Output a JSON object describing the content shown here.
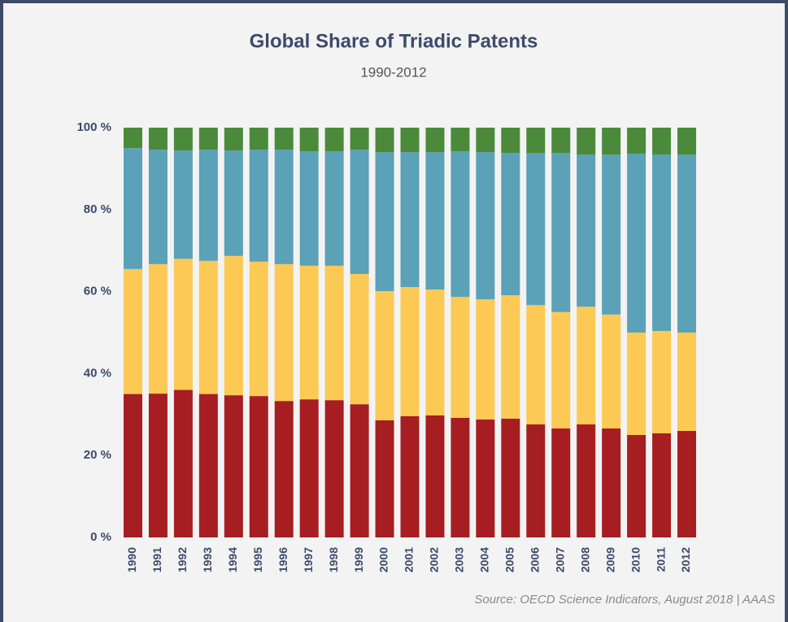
{
  "chart_data": {
    "type": "stacked_bar",
    "title": "Global Share of Triadic Patents",
    "subtitle": "1990-2012",
    "source": "Source: OECD Science Indicators, August 2018 | AAAS",
    "categories": [
      "1990",
      "1991",
      "1992",
      "1993",
      "1994",
      "1995",
      "1996",
      "1997",
      "1998",
      "1999",
      "2000",
      "2001",
      "2002",
      "2003",
      "2004",
      "2005",
      "2006",
      "2007",
      "2008",
      "2009",
      "2010",
      "2011",
      "2012"
    ],
    "series": [
      {
        "color": "#a61e22",
        "values": [
          35,
          35.1,
          36,
          35,
          34.7,
          34.5,
          33.3,
          33.7,
          33.5,
          32.5,
          28.6,
          29.6,
          29.8,
          29.2,
          28.8,
          29,
          27.6,
          26.6,
          27.6,
          26.6,
          25,
          25.4,
          26
        ]
      },
      {
        "color": "#fcc954",
        "values": [
          30.5,
          31.6,
          32,
          32.5,
          34,
          32.8,
          33.4,
          32.6,
          32.8,
          31.8,
          31.5,
          31.5,
          30.7,
          29.5,
          29.3,
          30.1,
          29.1,
          28.4,
          28.7,
          27.8,
          25,
          25,
          24
        ]
      },
      {
        "color": "#5ba1b8",
        "values": [
          29.5,
          27.9,
          26.4,
          27.1,
          25.7,
          27.3,
          27.9,
          27.9,
          27.9,
          30.3,
          33.9,
          32.9,
          33.5,
          35.5,
          35.9,
          34.7,
          37.1,
          38.8,
          37.1,
          39,
          43.6,
          43,
          43.4
        ]
      },
      {
        "color": "#4b8a3b",
        "values": [
          5,
          5.4,
          5.6,
          5.4,
          5.6,
          5.4,
          5.4,
          5.8,
          5.8,
          5.4,
          6,
          6,
          6,
          5.8,
          6,
          6.2,
          6.2,
          6.2,
          6.6,
          6.6,
          6.4,
          6.6,
          6.6
        ]
      }
    ],
    "ylim": [
      0,
      100
    ],
    "yticks": [
      {
        "value": 0,
        "label": "0 %"
      },
      {
        "value": 20,
        "label": "20 %"
      },
      {
        "value": 40,
        "label": "40 %"
      },
      {
        "value": 60,
        "label": "60 %"
      },
      {
        "value": 80,
        "label": "80 %"
      },
      {
        "value": 100,
        "label": "100 %"
      }
    ],
    "grid": false
  }
}
